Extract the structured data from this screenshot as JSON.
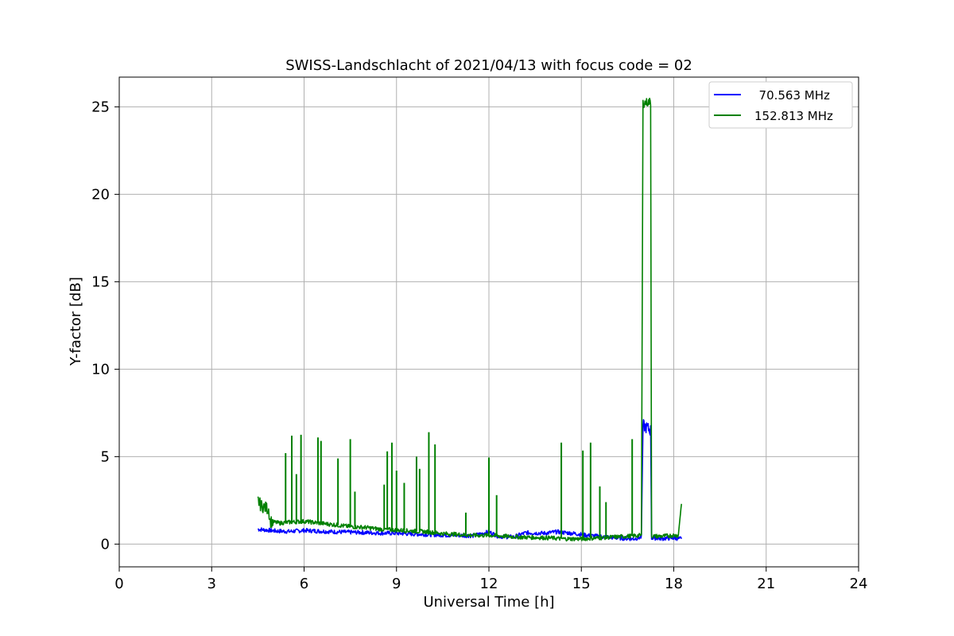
{
  "chart_data": {
    "type": "line",
    "title": "SWISS-Landschlacht of 2021/04/13 with focus code = 02",
    "xlabel": "Universal Time [h]",
    "ylabel": "Y-factor [dB]",
    "xlim": [
      0,
      24
    ],
    "ylim": [
      -1.3,
      26.7
    ],
    "xticks": [
      0,
      3,
      6,
      9,
      12,
      15,
      18,
      21,
      24
    ],
    "yticks": [
      0,
      5,
      10,
      15,
      20,
      25
    ],
    "grid": true,
    "legend_position": "top-right",
    "series": [
      {
        "name": "  70.563 MHz",
        "color": "#0000ff",
        "points": [
          [
            4.5,
            0.85
          ],
          [
            4.8,
            0.8
          ],
          [
            5.1,
            0.75
          ],
          [
            5.5,
            0.72
          ],
          [
            6.0,
            0.78
          ],
          [
            6.5,
            0.74
          ],
          [
            7.0,
            0.7
          ],
          [
            7.5,
            0.68
          ],
          [
            8.0,
            0.66
          ],
          [
            8.5,
            0.63
          ],
          [
            9.0,
            0.62
          ],
          [
            9.5,
            0.58
          ],
          [
            10.0,
            0.55
          ],
          [
            10.5,
            0.52
          ],
          [
            11.0,
            0.5
          ],
          [
            11.5,
            0.48
          ],
          [
            12.0,
            0.7
          ],
          [
            12.3,
            0.45
          ],
          [
            12.8,
            0.4
          ],
          [
            13.2,
            0.65
          ],
          [
            13.8,
            0.62
          ],
          [
            14.2,
            0.7
          ],
          [
            14.8,
            0.6
          ],
          [
            15.2,
            0.5
          ],
          [
            15.7,
            0.42
          ],
          [
            16.2,
            0.35
          ],
          [
            16.7,
            0.3
          ],
          [
            16.95,
            0.4
          ],
          [
            17.0,
            6.8
          ],
          [
            17.25,
            6.5
          ],
          [
            17.28,
            0.35
          ],
          [
            17.6,
            0.32
          ],
          [
            18.0,
            0.35
          ],
          [
            18.25,
            0.3
          ]
        ]
      },
      {
        "name": "152.813 MHz",
        "color": "#008000",
        "points": [
          [
            4.5,
            2.5
          ],
          [
            4.6,
            2.2
          ],
          [
            4.85,
            2.0
          ],
          [
            4.9,
            1.3
          ],
          [
            5.2,
            1.2
          ],
          [
            5.5,
            1.25
          ],
          [
            6.0,
            1.3
          ],
          [
            6.5,
            1.2
          ],
          [
            7.0,
            1.1
          ],
          [
            7.5,
            1.0
          ],
          [
            8.0,
            0.95
          ],
          [
            8.5,
            0.85
          ],
          [
            9.0,
            0.8
          ],
          [
            9.5,
            0.75
          ],
          [
            10.0,
            0.7
          ],
          [
            10.5,
            0.6
          ],
          [
            11.0,
            0.55
          ],
          [
            11.5,
            0.5
          ],
          [
            12.0,
            0.5
          ],
          [
            12.5,
            0.45
          ],
          [
            13.0,
            0.4
          ],
          [
            13.5,
            0.38
          ],
          [
            14.0,
            0.35
          ],
          [
            14.5,
            0.3
          ],
          [
            15.0,
            0.3
          ],
          [
            15.5,
            0.35
          ],
          [
            16.0,
            0.4
          ],
          [
            16.5,
            0.45
          ],
          [
            16.95,
            0.5
          ],
          [
            17.0,
            25.2
          ],
          [
            17.25,
            25.3
          ],
          [
            17.28,
            0.45
          ],
          [
            17.6,
            0.45
          ],
          [
            18.0,
            0.5
          ],
          [
            18.15,
            0.5
          ],
          [
            18.2,
            1.5
          ],
          [
            18.25,
            2.3
          ]
        ],
        "spikes": [
          [
            5.4,
            5.2
          ],
          [
            5.6,
            6.2
          ],
          [
            5.75,
            4.0
          ],
          [
            5.9,
            6.25
          ],
          [
            6.45,
            6.1
          ],
          [
            6.55,
            5.9
          ],
          [
            7.1,
            4.9
          ],
          [
            7.5,
            6.0
          ],
          [
            7.65,
            3.0
          ],
          [
            8.6,
            3.4
          ],
          [
            8.7,
            5.3
          ],
          [
            8.85,
            5.8
          ],
          [
            9.0,
            4.2
          ],
          [
            9.25,
            3.5
          ],
          [
            9.65,
            5.0
          ],
          [
            9.75,
            4.3
          ],
          [
            10.05,
            6.4
          ],
          [
            10.25,
            5.7
          ],
          [
            11.25,
            1.8
          ],
          [
            12.0,
            4.95
          ],
          [
            12.25,
            2.8
          ],
          [
            14.35,
            5.8
          ],
          [
            15.05,
            5.35
          ],
          [
            15.3,
            5.8
          ],
          [
            15.6,
            3.3
          ],
          [
            15.8,
            2.4
          ],
          [
            16.65,
            6.0
          ]
        ]
      }
    ]
  }
}
